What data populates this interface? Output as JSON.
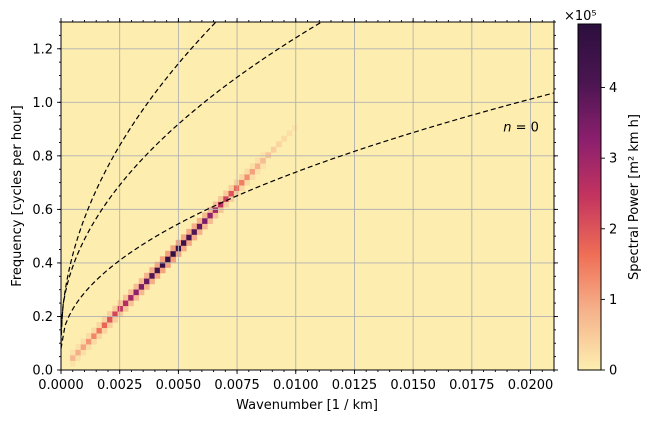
{
  "chart_data": {
    "type": "heatmap",
    "xlabel": "Wavenumber [1 / km]",
    "ylabel": "Frequency [cycles per hour]",
    "xlim": [
      0.0,
      0.021
    ],
    "ylim": [
      0.0,
      1.3
    ],
    "x_ticks": [
      "0.0000",
      "0.0025",
      "0.0050",
      "0.0075",
      "0.0100",
      "0.0125",
      "0.0150",
      "0.0175",
      "0.0200"
    ],
    "y_ticks": [
      "0.0",
      "0.2",
      "0.4",
      "0.6",
      "0.8",
      "1.0",
      "1.2"
    ],
    "grid": true,
    "colormap": [
      "#fdeeb0",
      "#f6b48c",
      "#ef6e56",
      "#c4345f",
      "#8b1f6e",
      "#4a1551",
      "#2b0f3d"
    ],
    "background_color": "#fdeeb0",
    "colorbar": {
      "label": "Spectral Power [m² km h]",
      "scale_label": "×10⁵",
      "range": [
        0,
        490000
      ],
      "ticks": [
        "0",
        "1",
        "2",
        "3",
        "4"
      ]
    },
    "ridge": {
      "description_free_values": true,
      "x_start": 0.0005,
      "x_end": 0.0105,
      "slope_cph_per_inv_km": 91.0,
      "peak_x": 0.0045,
      "peak_value": 480000
    },
    "dispersion_curves": [
      {
        "label": "",
        "x_end": 0.0066,
        "y_at_end": 1.3
      },
      {
        "label": "",
        "x_end": 0.0111,
        "y_at_end": 1.3
      },
      {
        "label": "n = 0",
        "x_end": 0.021,
        "y_at_end": 1.035
      }
    ],
    "annotation": {
      "label_italic": "n",
      "label_rest": " = 0",
      "x": 0.019,
      "y": 0.91
    }
  }
}
